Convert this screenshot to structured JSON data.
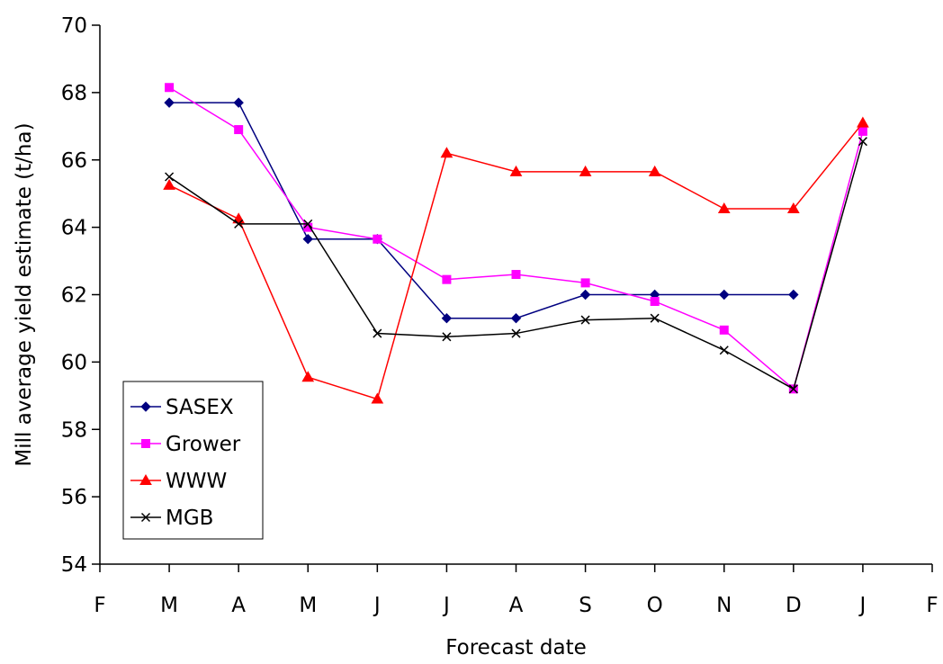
{
  "chart_data": {
    "type": "line",
    "title": "",
    "xlabel": "Forecast date",
    "ylabel": "Mill average yield estimate (t/ha)",
    "categories": [
      "F",
      "M",
      "A",
      "M",
      "J",
      "J",
      "A",
      "S",
      "O",
      "N",
      "D",
      "J",
      "F"
    ],
    "ylim": [
      54,
      70
    ],
    "yticks": [
      54,
      56,
      58,
      60,
      62,
      64,
      66,
      68,
      70
    ],
    "ytick_labels": [
      "54",
      "56",
      "58",
      "60",
      "62",
      "64",
      "66",
      "68",
      "70"
    ],
    "grid": false,
    "legend_position": "bottom-left",
    "series": [
      {
        "name": "SASEX",
        "color": "#000080",
        "marker": "diamond",
        "values": [
          null,
          67.7,
          67.7,
          63.65,
          63.65,
          61.3,
          61.3,
          62.0,
          62.0,
          62.0,
          62.0,
          null,
          null
        ]
      },
      {
        "name": "Grower",
        "color": "#FF00FF",
        "marker": "square",
        "values": [
          null,
          68.15,
          66.9,
          64.0,
          63.65,
          62.45,
          62.6,
          62.35,
          61.8,
          60.95,
          59.2,
          66.85,
          null
        ]
      },
      {
        "name": "WWW",
        "color": "#FF0000",
        "marker": "triangle",
        "values": [
          null,
          65.25,
          64.25,
          59.55,
          58.9,
          66.2,
          65.65,
          65.65,
          65.65,
          64.55,
          64.55,
          67.1,
          null
        ]
      },
      {
        "name": "MGB",
        "color": "#000000",
        "marker": "x",
        "values": [
          null,
          65.5,
          64.1,
          64.1,
          60.85,
          60.75,
          60.85,
          61.25,
          61.3,
          60.35,
          59.2,
          66.55,
          null
        ]
      }
    ]
  }
}
